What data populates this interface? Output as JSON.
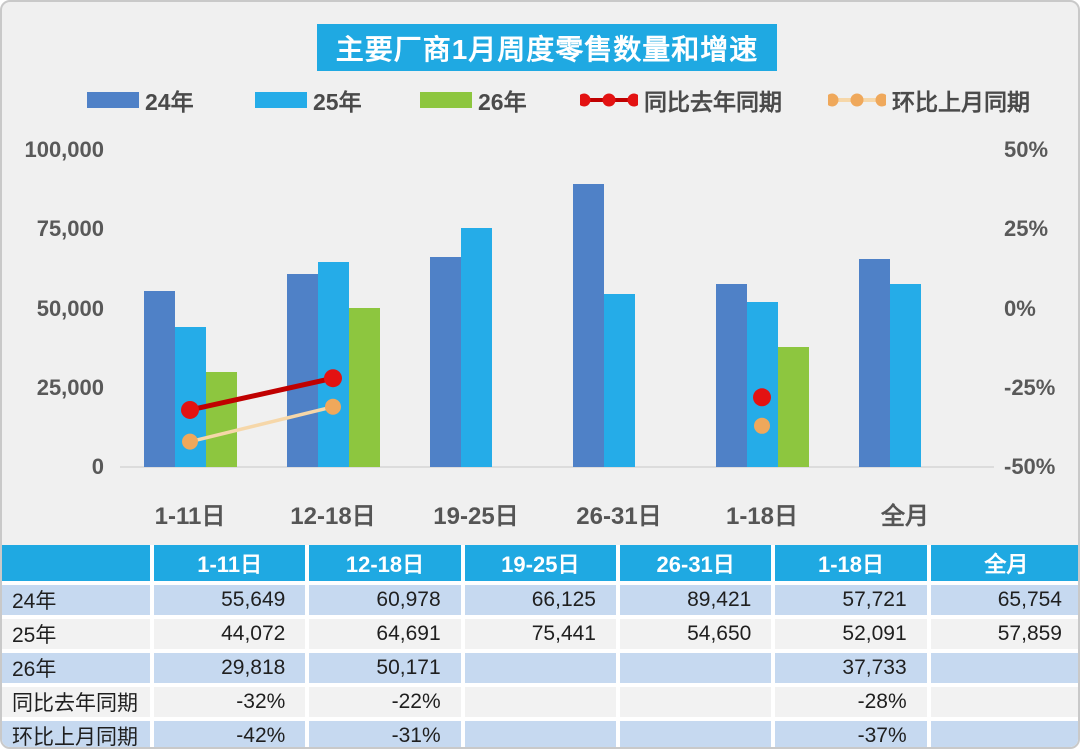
{
  "title": "主要厂商1月周度零售数量和增速",
  "legend": [
    {
      "label": "24年",
      "type": "bar",
      "color": "#4F81C7"
    },
    {
      "label": "25年",
      "type": "bar",
      "color": "#25ACE8"
    },
    {
      "label": "26年",
      "type": "bar",
      "color": "#8DC63F"
    },
    {
      "label": "同比去年同期",
      "type": "line",
      "color": "#C00000",
      "dot_color": "#E31212"
    },
    {
      "label": "环比上月同期",
      "type": "line",
      "color": "#F6D7A9",
      "dot_color": "#EFA85B"
    }
  ],
  "chart_data": {
    "type": "bar",
    "title": "主要厂商1月周度零售数量和增速",
    "categories": [
      "1-11日",
      "12-18日",
      "19-25日",
      "26-31日",
      "1-18日",
      "全月"
    ],
    "series": [
      {
        "name": "24年",
        "kind": "bar",
        "color": "#4F81C7",
        "values": [
          55649,
          60978,
          66125,
          89421,
          57721,
          65754
        ]
      },
      {
        "name": "25年",
        "kind": "bar",
        "color": "#25ACE8",
        "values": [
          44072,
          64691,
          75441,
          54650,
          52091,
          57859
        ]
      },
      {
        "name": "26年",
        "kind": "bar",
        "color": "#8DC63F",
        "values": [
          29818,
          50171,
          null,
          null,
          37733,
          null
        ]
      },
      {
        "name": "同比去年同期",
        "kind": "line",
        "color": "#C00000",
        "dot_color": "#E31212",
        "values_pct": [
          -32,
          -22,
          null,
          null,
          -28,
          null
        ]
      },
      {
        "name": "环比上月同期",
        "kind": "line",
        "color": "#F6D7A9",
        "dot_color": "#EFA85B",
        "values_pct": [
          -42,
          -31,
          null,
          null,
          -37,
          null
        ]
      }
    ],
    "left_axis": {
      "label": "",
      "ticks": [
        "100,000",
        "75,000",
        "50,000",
        "25,000",
        "0"
      ],
      "min": 0,
      "max": 100000
    },
    "right_axis": {
      "label": "",
      "ticks": [
        "50%",
        "25%",
        "0%",
        "-25%",
        "-50%"
      ],
      "min": -50,
      "max": 50
    },
    "grid": false,
    "legend_position": "top"
  },
  "table": {
    "header": [
      "",
      "1-11日",
      "12-18日",
      "19-25日",
      "26-31日",
      "1-18日",
      "全月"
    ],
    "rows": [
      {
        "label": "24年",
        "cells": [
          "55,649",
          "60,978",
          "66,125",
          "89,421",
          "57,721",
          "65,754"
        ]
      },
      {
        "label": "25年",
        "cells": [
          "44,072",
          "64,691",
          "75,441",
          "54,650",
          "52,091",
          "57,859"
        ]
      },
      {
        "label": "26年",
        "cells": [
          "29,818",
          "50,171",
          "",
          "",
          "37,733",
          ""
        ]
      },
      {
        "label": "同比去年同期",
        "cells": [
          "-32%",
          "-22%",
          "",
          "",
          "-28%",
          ""
        ]
      },
      {
        "label": "环比上月同期",
        "cells": [
          "-42%",
          "-31%",
          "",
          "",
          "-37%",
          ""
        ]
      }
    ]
  },
  "colors": {
    "accent_cyan": "#1FA9E2",
    "bar_24": "#4F81C7",
    "bar_25": "#25ACE8",
    "bar_26": "#8DC63F",
    "line_yoy": "#C00000",
    "line_mom": "#F6D7A9",
    "row_blue": "#C6D9F0",
    "row_light": "#F2F2F2",
    "chart_bg": "#F0F0F0",
    "axis_text": "#595959"
  }
}
